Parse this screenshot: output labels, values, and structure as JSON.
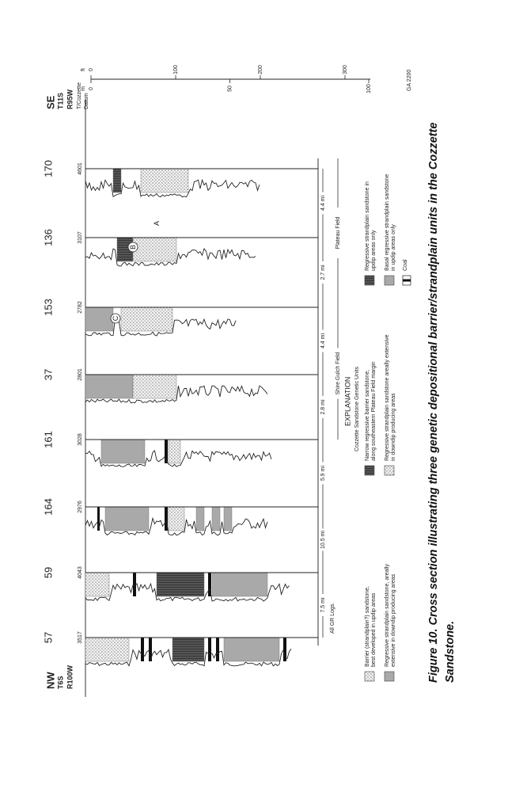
{
  "figure": {
    "nw": {
      "label": "NW",
      "township": "T6S",
      "range": "R100W"
    },
    "se": {
      "label": "SE",
      "township": "T11S",
      "range": "R95W",
      "datum": [
        "T/Cozzette",
        "Datum"
      ]
    },
    "wells": [
      {
        "name": "57",
        "depth": "3517"
      },
      {
        "name": "59",
        "depth": "4043"
      },
      {
        "name": "164",
        "depth": "2976"
      },
      {
        "name": "161",
        "depth": "3028"
      },
      {
        "name": "37",
        "depth": "2801"
      },
      {
        "name": "153",
        "depth": "2782"
      },
      {
        "name": "136",
        "depth": "3107"
      },
      {
        "name": "170",
        "depth": "4601"
      }
    ],
    "distances": [
      "7.5 mi",
      "10.5 mi",
      "5.9 mi",
      "2.8 mi",
      "4.4 mi",
      "2.7 mi",
      "4.4 mi"
    ],
    "log_note": "All GR Logs.",
    "fields": [
      "Shire Gulch Field",
      "Plateau Field"
    ],
    "unit_labels": [
      "A",
      "B",
      "C"
    ],
    "explanation": {
      "title": "EXPLANATION",
      "subtitle": "Cozzette Sandstone Genetic Units",
      "items": [
        {
          "pattern": "dots",
          "text": [
            "Barrier (strandplain?) sandstone,",
            "best developed in updip areas"
          ]
        },
        {
          "pattern": "gray",
          "text": [
            "Regressive strandplain sandstone, areally",
            "extensive in downdip producing areas"
          ]
        },
        {
          "pattern": "dark",
          "text": [
            "Narrow regressive barrier sandstone,",
            "along southeastern Plateau Field margin"
          ]
        },
        {
          "pattern": "dots",
          "text": [
            "Regressive strandplain sandstone areally extensive",
            "in downdip producing areas"
          ]
        },
        {
          "pattern": "dark",
          "text": [
            "Regressive strandplain sandstone in",
            "updip areas only"
          ]
        },
        {
          "pattern": "gray",
          "text": [
            "Basal regressive strandplain sandstone",
            "in updip areas only"
          ]
        },
        {
          "pattern": "coal",
          "text": [
            "Coal"
          ]
        }
      ]
    },
    "scale": {
      "ft": {
        "unit": "ft",
        "ticks": [
          0,
          100,
          200,
          300
        ]
      },
      "m": {
        "unit": "m",
        "ticks": [
          0,
          50,
          100
        ]
      }
    },
    "code": "GA 2200"
  },
  "caption": [
    "Figure 10.  Cross section illustrating three genetic depositional barrier/strandplain units in the Cozzette",
    "Sandstone."
  ]
}
